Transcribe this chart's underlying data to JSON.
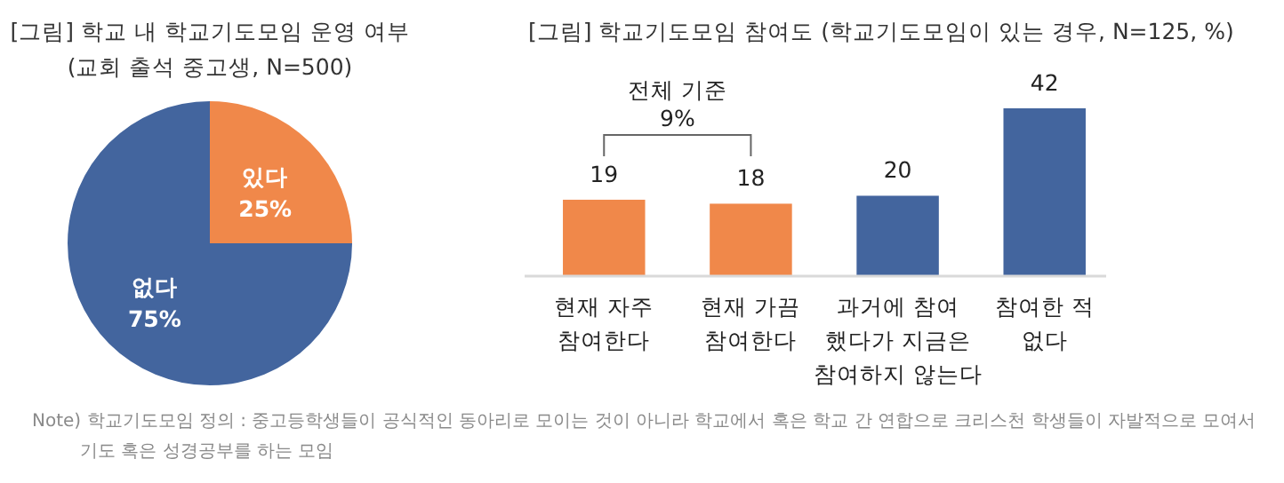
{
  "chart_data": [
    {
      "type": "pie",
      "title": "[그림] 학교 내 학교기도모임 운영 여부",
      "subtitle": "(교회 출석 중고생, N=500)",
      "categories": [
        "있다",
        "없다"
      ],
      "values": [
        25,
        75
      ],
      "colors": [
        "#f0884a",
        "#43659e"
      ],
      "value_labels": [
        "25%",
        "75%"
      ],
      "annotations": [
        "Note) 학교기도모임 정의 : 중고등학생들이 공식적인 동아리로 모이는 것이 아니라 학교에서 혹은 학교 간 연합으로 크리스천 학생들이 자발적으로 모여서 기도 혹은 성경공부를 하는 모임"
      ]
    },
    {
      "type": "bar",
      "title": "[그림] 학교기도모임 참여도 (학교기도모임이 있는 경우, N=125, %)",
      "categories": [
        "현재 자주\n참여한다",
        "현재 가끔\n참여한다",
        "과거에 참여\n했다가 지금은\n참여하지 않는다",
        "참여한 적\n없다"
      ],
      "values": [
        19,
        18,
        20,
        42
      ],
      "colors": [
        "#f0884a",
        "#f0884a",
        "#43659e",
        "#43659e"
      ],
      "data_labels": true,
      "annotations": [
        "전체 기준 9%"
      ]
    }
  ]
}
